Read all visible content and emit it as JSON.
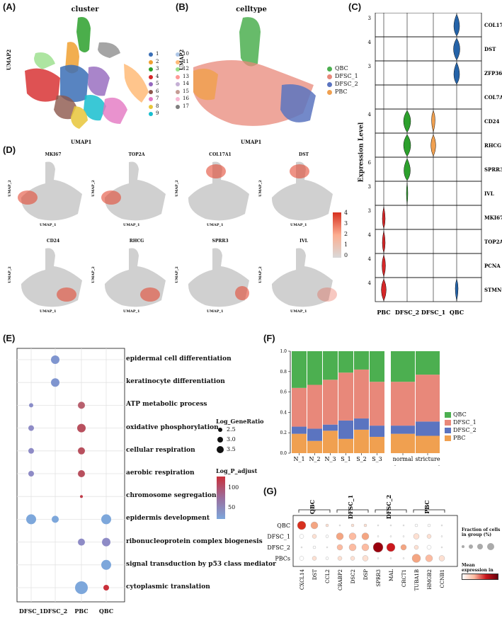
{
  "panels": {
    "A": "(A)",
    "B": "(B)",
    "C": "(C)",
    "D": "(D)",
    "E": "(E)",
    "F": "(F)",
    "G": "(G)"
  },
  "panelA": {
    "title": "cluster",
    "xlabel": "UMAP1",
    "ylabel": "UMAP2",
    "legend": [
      {
        "label": "1",
        "color": "#3b6fb6"
      },
      {
        "label": "2",
        "color": "#f0a030"
      },
      {
        "label": "3",
        "color": "#2ca02c"
      },
      {
        "label": "4",
        "color": "#d62728"
      },
      {
        "label": "5",
        "color": "#9467bd"
      },
      {
        "label": "6",
        "color": "#8c564b"
      },
      {
        "label": "7",
        "color": "#e377c2"
      },
      {
        "label": "8",
        "color": "#e8c53a"
      },
      {
        "label": "9",
        "color": "#17becf"
      },
      {
        "label": "10",
        "color": "#aec7e8"
      },
      {
        "label": "11",
        "color": "#ffbb78"
      },
      {
        "label": "12",
        "color": "#98df8a"
      },
      {
        "label": "13",
        "color": "#ff9896"
      },
      {
        "label": "14",
        "color": "#c5b0d5"
      },
      {
        "label": "15",
        "color": "#c49c94"
      },
      {
        "label": "16",
        "color": "#f7b6d2"
      },
      {
        "label": "17",
        "color": "#7f7f7f"
      }
    ]
  },
  "panelB": {
    "title": "celltype",
    "xlabel": "UMAP1",
    "ylabel": "UMAP2",
    "legend": [
      {
        "label": "QBC",
        "color": "#4caf50"
      },
      {
        "label": "DFSC_1",
        "color": "#e8887a"
      },
      {
        "label": "DFSC_2",
        "color": "#5b74c0"
      },
      {
        "label": "PBC",
        "color": "#f0a050"
      }
    ]
  },
  "panelC": {
    "ylabel": "Expression Level",
    "genes": [
      "COL17A1",
      "DST",
      "ZFP36L2",
      "COL7A1",
      "CD24",
      "RHCG",
      "SPRR3",
      "IVL",
      "MKI67",
      "TOP2A",
      "PCNA",
      "STMN1"
    ],
    "ticks": [
      "3",
      "4",
      "3",
      "",
      "4",
      "",
      "6",
      "3",
      "3",
      "4",
      "4",
      "4"
    ],
    "groups": [
      "PBC",
      "DFSC_2",
      "DFSC_1",
      "QBC"
    ]
  },
  "panelD": {
    "xlabel": "UMAP_1",
    "ylabel": "UMAP_2",
    "genes": [
      "MKI67",
      "TOP2A",
      "COL17A1",
      "DST",
      "CD24",
      "RHCG",
      "SPRR3",
      "IVL"
    ],
    "scale": [
      "4",
      "3",
      "2",
      "1",
      "0"
    ]
  },
  "panelE": {
    "terms": [
      "epidermal cell differentiation",
      "keratinocyte differentiation",
      "ATP metabolic process",
      "oxidative phosphorylation",
      "cellular respiration",
      "aerobic respiration",
      "chromosome segregation",
      "epidermis development",
      "ribonucleoprotein complex biogenesis",
      "signal transduction by p53 class mediator",
      "cytoplasmic translation"
    ],
    "groups": [
      "DFSC_1",
      "DFSC_2",
      "PBC",
      "QBC"
    ],
    "size_title": "Log_GeneRatio",
    "size_labels": [
      "2.5",
      "3.0",
      "3.5"
    ],
    "color_title": "Log_P_adjust",
    "color_labels": [
      "100",
      "50"
    ]
  },
  "panelF": {
    "chart_data": [
      {
        "type": "bar",
        "stacked": true,
        "categories": [
          "N_1",
          "N_2",
          "N_3",
          "S_1",
          "S_2",
          "S_3"
        ],
        "series": [
          {
            "name": "PBC",
            "color": "#f0a050",
            "values": [
              0.19,
              0.12,
              0.22,
              0.14,
              0.23,
              0.16
            ]
          },
          {
            "name": "DFSC_2",
            "color": "#5b74c0",
            "values": [
              0.07,
              0.12,
              0.06,
              0.18,
              0.11,
              0.11
            ]
          },
          {
            "name": "DFSC_1",
            "color": "#e8887a",
            "values": [
              0.38,
              0.43,
              0.44,
              0.47,
              0.48,
              0.43
            ]
          },
          {
            "name": "QBC",
            "color": "#4caf50",
            "values": [
              0.36,
              0.33,
              0.28,
              0.21,
              0.18,
              0.3
            ]
          }
        ],
        "yticks": [
          "0.0",
          "0.2",
          "0.4",
          "0.6",
          "0.8",
          "1.0"
        ],
        "ylim": [
          0,
          1
        ]
      },
      {
        "type": "bar",
        "stacked": true,
        "categories": [
          "normal",
          "stricture"
        ],
        "series": [
          {
            "name": "PBC",
            "color": "#f0a050",
            "values": [
              0.19,
              0.17
            ]
          },
          {
            "name": "DFSC_2",
            "color": "#5b74c0",
            "values": [
              0.08,
              0.14
            ]
          },
          {
            "name": "DFSC_1",
            "color": "#e8887a",
            "values": [
              0.43,
              0.46
            ]
          },
          {
            "name": "QBC",
            "color": "#4caf50",
            "values": [
              0.3,
              0.23
            ]
          }
        ],
        "ylim": [
          0,
          1
        ]
      }
    ],
    "legend": [
      {
        "label": "QBC",
        "color": "#4caf50"
      },
      {
        "label": "DFSC_1",
        "color": "#e8887a"
      },
      {
        "label": "DFSC_2",
        "color": "#5b74c0"
      },
      {
        "label": "PBC",
        "color": "#f0a050"
      }
    ]
  },
  "panelG": {
    "groups": [
      "QBC",
      "DFSC_1",
      "DFSC_2",
      "PBC"
    ],
    "rows": [
      "QBC",
      "DFSC_1",
      "DFSC_2",
      "PBCs"
    ],
    "genes": [
      "CXCL14",
      "DST",
      "CCL2",
      "CRABP2",
      "DSC2",
      "DSP",
      "SPRR3",
      "MAL",
      "CRCT1",
      "TUBA1B",
      "HMGB2",
      "CCNB1"
    ],
    "fraction_title": "Fraction of cells in group (%)",
    "mean_title": "Mean expression in group"
  }
}
